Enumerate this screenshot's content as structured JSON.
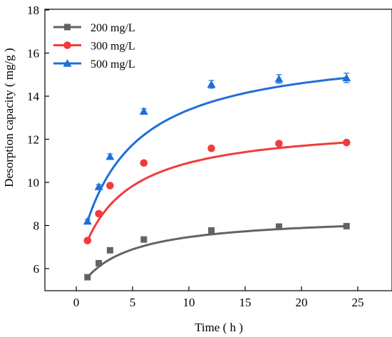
{
  "chart_data": {
    "type": "line",
    "xlabel": "Time ( h )",
    "ylabel": "Desorption capacity ( mg/g )",
    "xlim": [
      -2,
      27
    ],
    "ylim": [
      4.5,
      18
    ],
    "xticks": [
      0,
      5,
      10,
      15,
      20,
      25
    ],
    "yticks": [
      6,
      8,
      10,
      12,
      14,
      16,
      18
    ],
    "grid": false,
    "legend_position": "top-left",
    "series": [
      {
        "name": "200 mg/L",
        "color": "#636363",
        "marker": "square",
        "x": [
          1,
          2,
          3,
          6,
          12,
          18,
          24
        ],
        "y": [
          5.6,
          6.25,
          6.85,
          7.35,
          7.77,
          7.95,
          7.97
        ],
        "error": [
          0.05,
          0.05,
          0.05,
          0.05,
          0.05,
          0.05,
          0.05
        ],
        "fit": {
          "qe": 7.97,
          "k": 0.29,
          "offset": 0.45
        }
      },
      {
        "name": "300 mg/L",
        "color": "#f23b3b",
        "marker": "circle",
        "x": [
          1,
          2,
          3,
          6,
          12,
          18,
          24
        ],
        "y": [
          7.3,
          8.55,
          9.85,
          10.9,
          11.58,
          11.8,
          11.85
        ],
        "error": [
          0.05,
          0.05,
          0.05,
          0.05,
          0.05,
          0.05,
          0.05
        ],
        "fit": {
          "qe": 11.85,
          "k": 0.3,
          "offset": 0.3
        }
      },
      {
        "name": "500 mg/L",
        "color": "#1e6fd9",
        "marker": "triangle",
        "x": [
          1,
          2,
          3,
          6,
          12,
          18,
          24
        ],
        "y": [
          8.2,
          9.8,
          11.2,
          13.3,
          14.55,
          14.8,
          14.85
        ],
        "error": [
          0.08,
          0.1,
          0.12,
          0.12,
          0.18,
          0.2,
          0.22
        ],
        "fit": {
          "qe": 14.88,
          "k": 0.25,
          "offset": 0.2
        }
      }
    ]
  }
}
